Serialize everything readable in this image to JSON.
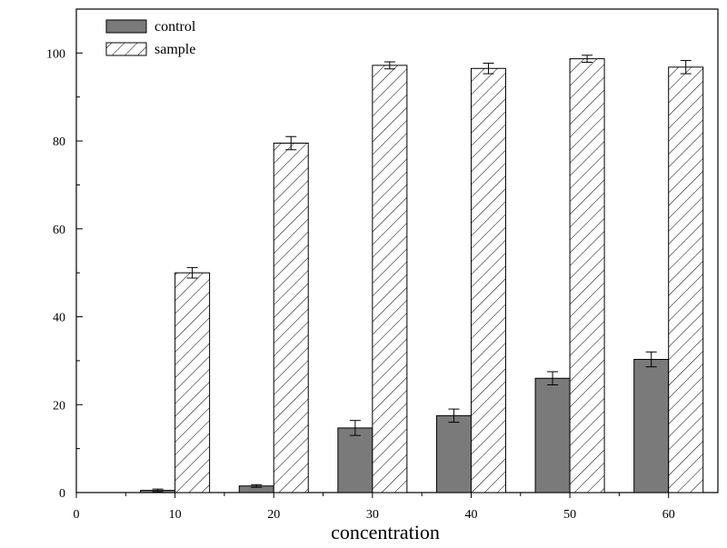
{
  "chart_data": {
    "type": "bar",
    "title": "",
    "xlabel": "concentration",
    "ylabel": "",
    "xlim": [
      0,
      65
    ],
    "ylim": [
      0,
      110
    ],
    "x_ticks": [
      0,
      10,
      20,
      30,
      40,
      50,
      60
    ],
    "y_ticks": [
      0,
      20,
      40,
      60,
      80,
      100
    ],
    "categories": [
      10,
      20,
      30,
      40,
      50,
      60
    ],
    "legend_position": "top-left",
    "grid": false,
    "series": [
      {
        "name": "control",
        "fill": "solid",
        "color": "#7a7a7a",
        "values": [
          0.5,
          1.5,
          14.7,
          17.5,
          26.0,
          30.3
        ],
        "errors": [
          0.3,
          0.3,
          1.7,
          1.5,
          1.5,
          1.7
        ]
      },
      {
        "name": "sample",
        "fill": "hatched",
        "color": "#000000",
        "values": [
          50.0,
          79.5,
          97.2,
          96.5,
          98.7,
          96.8
        ],
        "errors": [
          1.2,
          1.5,
          0.8,
          1.2,
          0.8,
          1.5
        ]
      }
    ]
  }
}
